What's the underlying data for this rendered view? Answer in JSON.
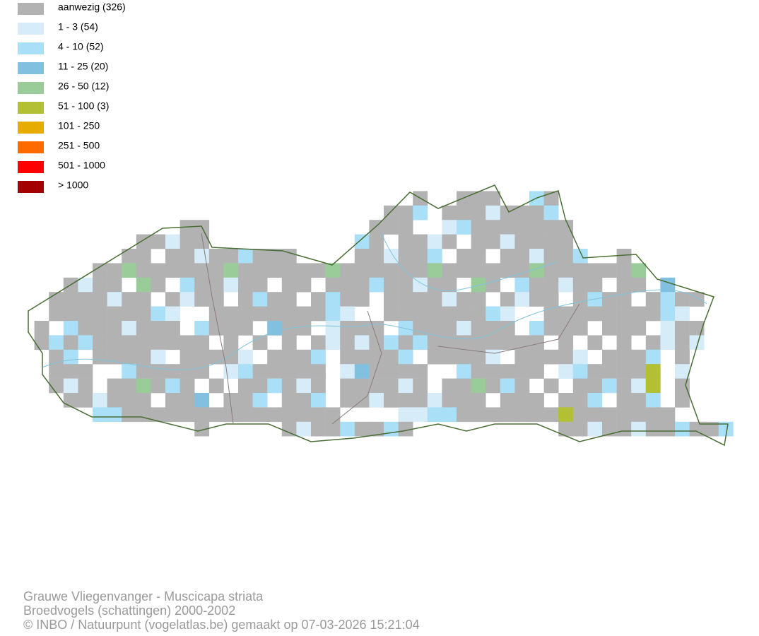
{
  "legend": {
    "items": [
      {
        "label": "aanwezig (326)",
        "color": "#b2b2b2"
      },
      {
        "label": "1 - 3 (54)",
        "color": "#d6ecf9"
      },
      {
        "label": "4 - 10 (52)",
        "color": "#aadff8"
      },
      {
        "label": "11 - 25 (20)",
        "color": "#82c0e0"
      },
      {
        "label": "26 - 50 (12)",
        "color": "#99cc99"
      },
      {
        "label": "51 - 100 (3)",
        "color": "#b3c034"
      },
      {
        "label": "101 - 250",
        "color": "#e6ad00"
      },
      {
        "label": "251 - 500",
        "color": "#ff6a00"
      },
      {
        "label": "501 - 1000",
        "color": "#ff0000"
      },
      {
        "label": "> 1000",
        "color": "#a50000"
      }
    ]
  },
  "footer": {
    "lines": [
      "Grauwe Vliegenvanger - Muscicapa striata",
      "Broedvogels (schattingen) 2000-2002",
      "© INBO / Natuurpunt (vogelatlas.be) gemaakt op 07-03-2026 15:21:04"
    ]
  }
}
